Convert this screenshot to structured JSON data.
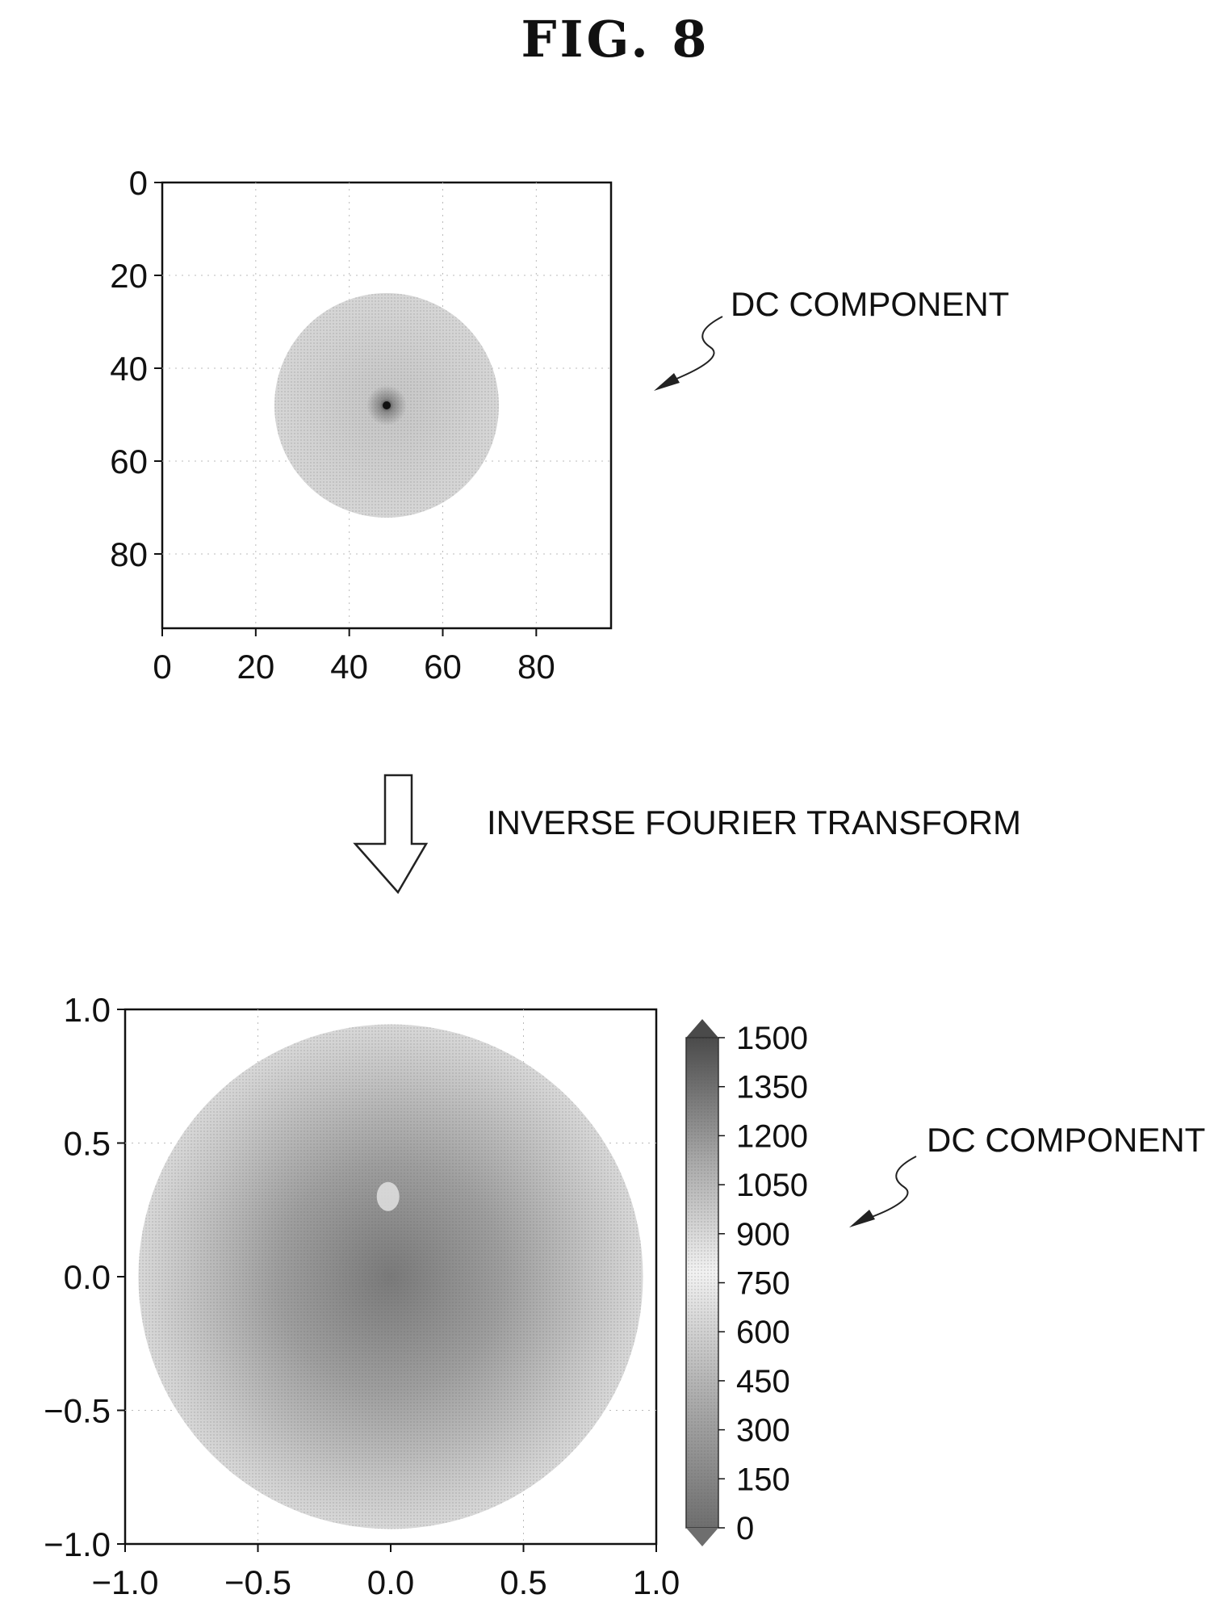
{
  "figure": {
    "title": "FIG.  8"
  },
  "labels": {
    "dc_top": "DC COMPONENT",
    "dc_bottom": "DC COMPONENT",
    "transform": "INVERSE FOURIER TRANSFORM"
  },
  "chart_data": [
    {
      "type": "heatmap",
      "title": "",
      "xlabel": "",
      "ylabel": "",
      "xlim": [
        0,
        96
      ],
      "ylim": [
        0,
        96
      ],
      "y_inverted": true,
      "x_ticks": [
        "0",
        "20",
        "40",
        "60",
        "80"
      ],
      "y_ticks": [
        "0",
        "20",
        "40",
        "60",
        "80"
      ],
      "disk_center": [
        48,
        48
      ],
      "disk_radius": 24,
      "peak": [
        48,
        48
      ],
      "annotation": "DC COMPONENT"
    },
    {
      "type": "heatmap",
      "title": "",
      "xlabel": "",
      "ylabel": "",
      "xlim": [
        -1.0,
        1.0
      ],
      "ylim": [
        -1.0,
        1.0
      ],
      "x_ticks": [
        "−1.0",
        "−0.5",
        "0.0",
        "0.5",
        "1.0"
      ],
      "y_ticks": [
        "1.0",
        "0.5",
        "0.0",
        "−0.5",
        "−1.0"
      ],
      "disk_radius": 0.95,
      "peak": [
        0.0,
        0.0
      ],
      "colorbar": {
        "min": 0,
        "max": 1500,
        "ticks": [
          "1500",
          "1350",
          "1200",
          "1050",
          "900",
          "750",
          "600",
          "450",
          "300",
          "150",
          "0"
        ]
      },
      "annotation": "DC COMPONENT"
    }
  ]
}
